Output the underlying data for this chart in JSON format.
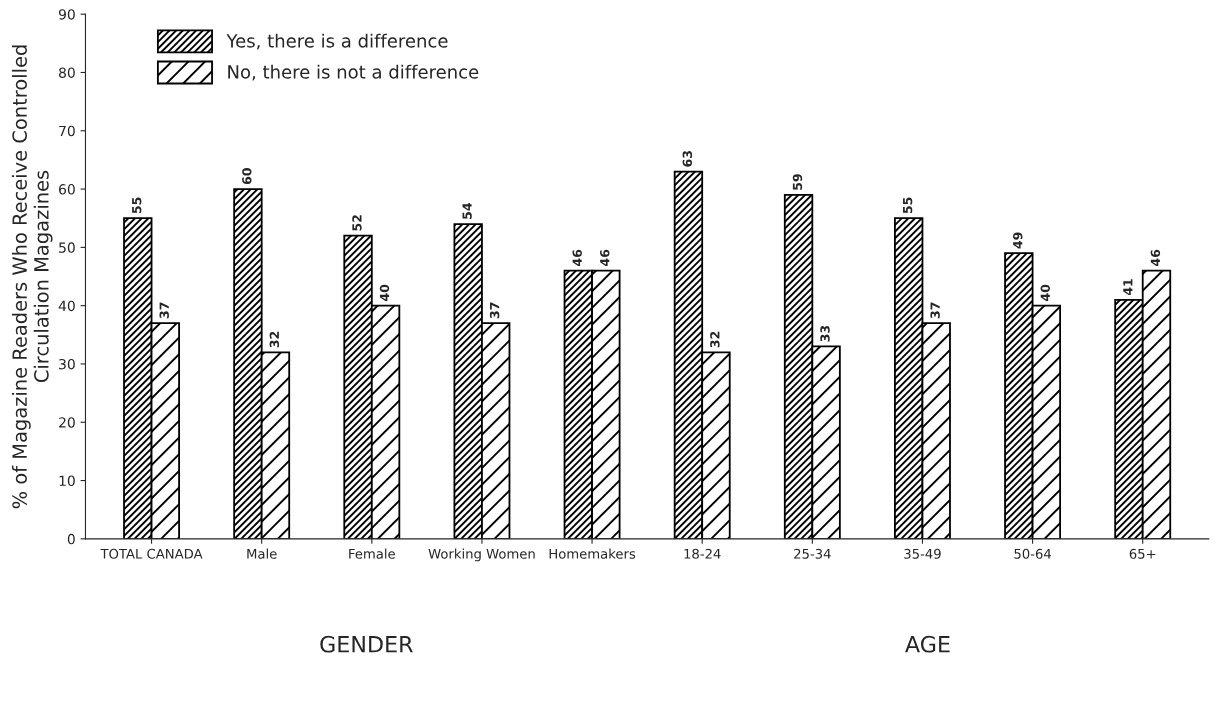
{
  "chart_data": {
    "type": "bar",
    "ylabel": "% of Magazine Readers Who Receive Controlled\nCirculation Magazines",
    "categories": [
      "TOTAL CANADA",
      "Male",
      "Female",
      "Working Women",
      "Homemakers",
      "18-24",
      "25-34",
      "35-49",
      "50-64",
      "65+"
    ],
    "series": [
      {
        "name": "Yes, there is a difference",
        "color": "#000000",
        "values": [
          55,
          60,
          52,
          54,
          46,
          63,
          59,
          55,
          49,
          41
        ]
      },
      {
        "name": "No, there is not a difference",
        "color": "#000000",
        "values": [
          37,
          32,
          40,
          37,
          46,
          32,
          33,
          37,
          40,
          46
        ]
      }
    ],
    "ylim": [
      0,
      90
    ],
    "yticks": [
      0,
      10,
      20,
      30,
      40,
      50,
      60,
      70,
      80,
      90
    ],
    "data_labels": true,
    "grid": false,
    "legend": "top left",
    "annotations": [
      "GENDER",
      "AGE"
    ]
  }
}
